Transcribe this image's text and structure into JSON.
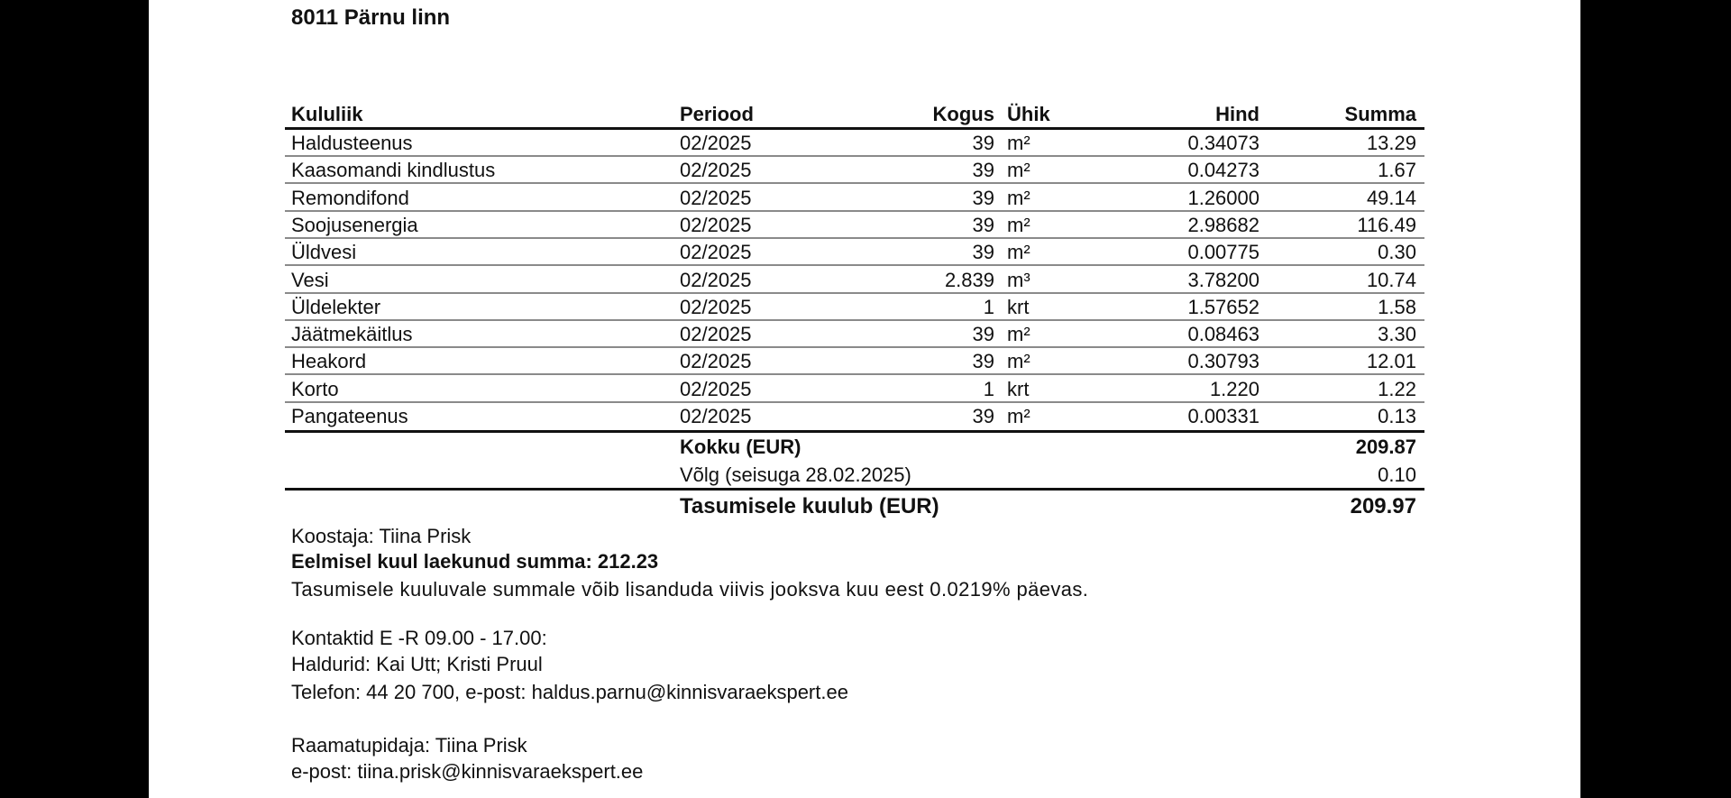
{
  "address": {
    "line": "8011 Pärnu linn"
  },
  "table": {
    "headers": {
      "kululiik": "Kululiik",
      "periood": "Periood",
      "kogus": "Kogus",
      "uhik": "Ühik",
      "hind": "Hind",
      "summa": "Summa"
    },
    "rows": [
      {
        "kululiik": "Haldusteenus",
        "periood": "02/2025",
        "kogus": "39",
        "uhik": "m²",
        "hind": "0.34073",
        "summa": "13.29"
      },
      {
        "kululiik": "Kaasomandi kindlustus",
        "periood": "02/2025",
        "kogus": "39",
        "uhik": "m²",
        "hind": "0.04273",
        "summa": "1.67"
      },
      {
        "kululiik": "Remondifond",
        "periood": "02/2025",
        "kogus": "39",
        "uhik": "m²",
        "hind": "1.26000",
        "summa": "49.14"
      },
      {
        "kululiik": "Soojusenergia",
        "periood": "02/2025",
        "kogus": "39",
        "uhik": "m²",
        "hind": "2.98682",
        "summa": "116.49"
      },
      {
        "kululiik": "Üldvesi",
        "periood": "02/2025",
        "kogus": "39",
        "uhik": "m²",
        "hind": "0.00775",
        "summa": "0.30"
      },
      {
        "kululiik": "Vesi",
        "periood": "02/2025",
        "kogus": "2.839",
        "uhik": "m³",
        "hind": "3.78200",
        "summa": "10.74"
      },
      {
        "kululiik": "Üldelekter",
        "periood": "02/2025",
        "kogus": "1",
        "uhik": "krt",
        "hind": "1.57652",
        "summa": "1.58"
      },
      {
        "kululiik": "Jäätmekäitlus",
        "periood": "02/2025",
        "kogus": "39",
        "uhik": "m²",
        "hind": "0.08463",
        "summa": "3.30"
      },
      {
        "kululiik": "Heakord",
        "periood": "02/2025",
        "kogus": "39",
        "uhik": "m²",
        "hind": "0.30793",
        "summa": "12.01"
      },
      {
        "kululiik": "Korto",
        "periood": "02/2025",
        "kogus": "1",
        "uhik": "krt",
        "hind": "1.220",
        "summa": "1.22"
      },
      {
        "kululiik": "Pangateenus",
        "periood": "02/2025",
        "kogus": "39",
        "uhik": "m²",
        "hind": "0.00331",
        "summa": "0.13"
      }
    ],
    "totals": {
      "kokku_label": "Kokku (EUR)",
      "kokku_value": "209.87",
      "volg_label": "Võlg (seisuga 28.02.2025)",
      "volg_value": "0.10",
      "tasumisele_label": "Tasumisele kuulub (EUR)",
      "tasumisele_value": "209.97"
    }
  },
  "footer": {
    "koostaja": "Koostaja: Tiina Prisk",
    "eelmisel": "Eelmisel kuul laekunud summa: 212.23",
    "viivis": "Tasumisele kuuluvale summale võib lisanduda viivis jooksva kuu eest 0.0219% päevas.",
    "kontaktid": "Kontaktid E -R 09.00 - 17.00:",
    "haldurid": "Haldurid: Kai Utt; Kristi Pruul",
    "telefon": "Telefon: 44 20 700, e-post: haldus.parnu@kinnisvaraekspert.ee",
    "raamatupidaja": "Raamatupidaja: Tiina Prisk",
    "epost": "e-post: tiina.prisk@kinnisvaraekspert.ee"
  }
}
